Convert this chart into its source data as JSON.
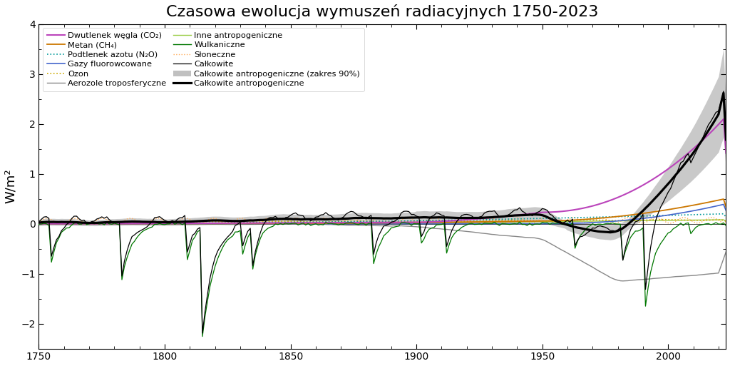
{
  "title": "Czasowa ewolucja wymuszeń radiacyjnych 1750-2023",
  "ylabel": "W/m²",
  "xlim": [
    1750,
    2023
  ],
  "ylim": [
    -2.5,
    4.0
  ],
  "yticks": [
    -2,
    -1,
    0,
    1,
    2,
    3,
    4
  ],
  "xticks": [
    1750,
    1800,
    1850,
    1900,
    1950,
    2000
  ],
  "colors": {
    "co2": "#bb44bb",
    "ch4": "#cc7700",
    "n2o": "#009999",
    "hfc": "#4466cc",
    "ozone": "#ccaa00",
    "aerosol": "#888888",
    "other_anthro": "#99cc44",
    "volcanic": "#007700",
    "solar": "#ffaa55",
    "total_anthro_shade": "#aaaaaa",
    "total_anthro": "#000000",
    "total": "#000000"
  },
  "legend_labels": {
    "co2": "Dwutlenek węgla (CO₂)",
    "ch4": "Metan (CH₄)",
    "n2o": "Podtlenek azotu (N₂O)",
    "hfc": "Gazy fluorowcowane",
    "ozone": "Ozon",
    "aerosol": "Aerozole troposferyczne",
    "other_anthro": "Inne antropogeniczne",
    "volcanic": "Wulkaniczne",
    "solar": "Słoneczne",
    "total": "Całkowite",
    "total_anthro_shade": "Całkowite antropogeniczne (zakres 90%)",
    "total_anthro": "Całkowite antropogeniczne"
  }
}
